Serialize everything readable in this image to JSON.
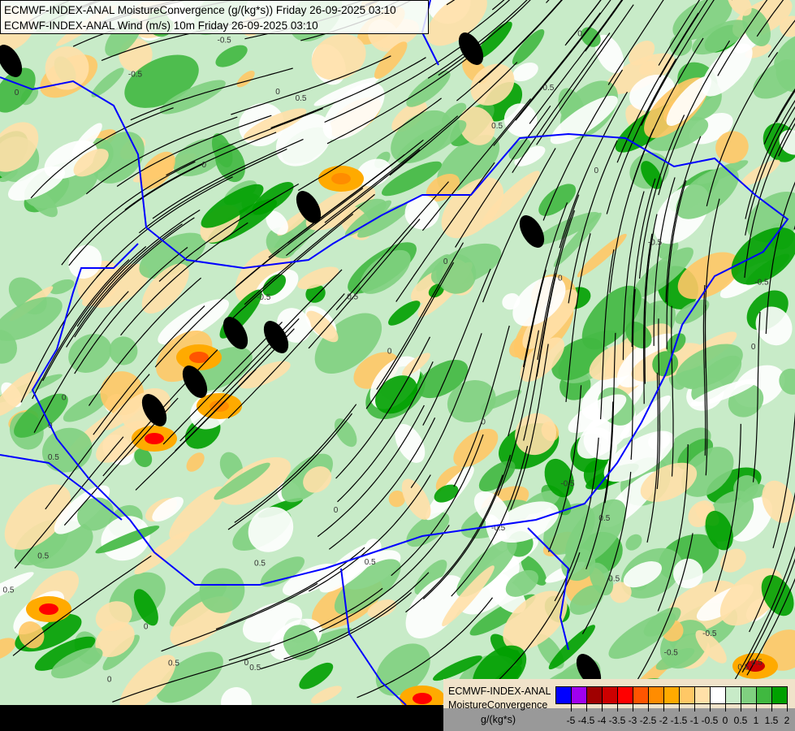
{
  "header": {
    "line1": "ECMWF-INDEX-ANAL MoistureConvergence (g/(kg*s)) Friday 26-09-2025 03:10",
    "line2": "ECMWF-INDEX-ANAL Wind (m/s) 10m Friday 26-09-2025 03:10"
  },
  "legend": {
    "title1": "ECMWF-INDEX-ANAL",
    "title2": "MoistureConvergence",
    "unit": "g/(kg*s)",
    "colors": [
      "#0000ff",
      "#a000f0",
      "#a00000",
      "#cc0000",
      "#ff0000",
      "#ff5500",
      "#ff8c00",
      "#ffaa00",
      "#ffc866",
      "#ffe0a8",
      "#ffffff",
      "#c8ebc8",
      "#80d080",
      "#40b840",
      "#00a000"
    ],
    "ticks": [
      "-5",
      "-4.5",
      "-4",
      "-3.5",
      "-3",
      "-2.5",
      "-2",
      "-1.5",
      "-1",
      "-0.5",
      "0",
      "0.5",
      "1",
      "1.5",
      "2"
    ]
  },
  "map": {
    "contour_labels": [
      "0",
      "0.5",
      "-0.5"
    ],
    "border_color": "#0000ff",
    "streamline_color": "#000000"
  }
}
